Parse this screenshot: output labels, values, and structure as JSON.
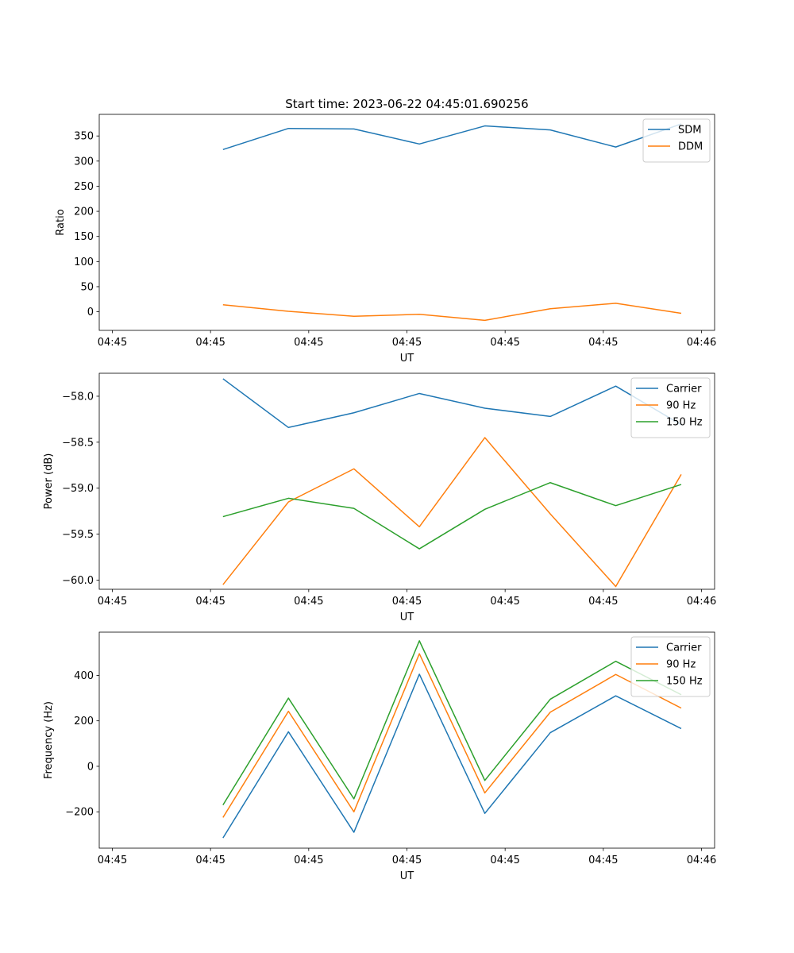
{
  "figure": {
    "title": "Start time: 2023-06-22 04:45:01.690256"
  },
  "chart_data": [
    {
      "type": "line",
      "title": "Start time: 2023-06-22 04:45:01.690256",
      "xlabel": "UT",
      "ylabel": "Ratio",
      "x": [
        1.69,
        2.69,
        3.69,
        4.69,
        5.69,
        6.69,
        7.69,
        8.69
      ],
      "x_ticks": [
        0,
        1.5,
        3,
        4.5,
        6,
        7.5,
        9
      ],
      "x_tick_labels": [
        "04:45",
        "04:45",
        "04:45",
        "04:45",
        "04:45",
        "04:45",
        "04:46"
      ],
      "xlim": [
        -0.2,
        9.2
      ],
      "ylim": [
        -37,
        393
      ],
      "y_ticks": [
        0,
        50,
        100,
        150,
        200,
        250,
        300,
        350
      ],
      "y_tick_labels": [
        "0",
        "50",
        "100",
        "150",
        "200",
        "250",
        "300",
        "350"
      ],
      "grid": false,
      "legend_position": "upper-right",
      "series": [
        {
          "name": "SDM",
          "color": "#1f77b4",
          "values": [
            323,
            365,
            364,
            334,
            370,
            362,
            328,
            374
          ]
        },
        {
          "name": "DDM",
          "color": "#ff7f0e",
          "values": [
            14,
            1,
            -9,
            -5,
            -17,
            6,
            17,
            -3
          ]
        }
      ]
    },
    {
      "type": "line",
      "xlabel": "UT",
      "ylabel": "Power (dB)",
      "x": [
        1.69,
        2.69,
        3.69,
        4.69,
        5.69,
        6.69,
        7.69,
        8.69
      ],
      "x_ticks": [
        0,
        1.5,
        3,
        4.5,
        6,
        7.5,
        9
      ],
      "x_tick_labels": [
        "04:45",
        "04:45",
        "04:45",
        "04:45",
        "04:45",
        "04:45",
        "04:46"
      ],
      "xlim": [
        -0.2,
        9.2
      ],
      "ylim": [
        -60.1,
        -57.75
      ],
      "y_ticks": [
        -60.0,
        -59.5,
        -59.0,
        -58.5,
        -58.0
      ],
      "y_tick_labels": [
        "−60.0",
        "−59.5",
        "−59.0",
        "−58.5",
        "−58.0"
      ],
      "grid": false,
      "legend_position": "upper-right",
      "series": [
        {
          "name": "Carrier",
          "color": "#1f77b4",
          "values": [
            -57.81,
            -58.34,
            -58.18,
            -57.97,
            -58.13,
            -58.22,
            -57.89,
            -58.31
          ]
        },
        {
          "name": "90 Hz",
          "color": "#ff7f0e",
          "values": [
            -60.05,
            -59.15,
            -58.79,
            -59.42,
            -58.45,
            -59.28,
            -60.07,
            -58.85
          ]
        },
        {
          "name": "150 Hz",
          "color": "#2ca02c",
          "values": [
            -59.31,
            -59.11,
            -59.22,
            -59.66,
            -59.23,
            -58.94,
            -59.19,
            -58.96
          ]
        }
      ]
    },
    {
      "type": "line",
      "xlabel": "UT",
      "ylabel": "Frequency (Hz)",
      "x": [
        1.69,
        2.69,
        3.69,
        4.69,
        5.69,
        6.69,
        7.69,
        8.69
      ],
      "x_ticks": [
        0,
        1.5,
        3,
        4.5,
        6,
        7.5,
        9
      ],
      "x_tick_labels": [
        "04:45",
        "04:45",
        "04:45",
        "04:45",
        "04:45",
        "04:45",
        "04:46"
      ],
      "xlim": [
        -0.2,
        9.2
      ],
      "ylim": [
        -360,
        590
      ],
      "y_ticks": [
        -200,
        0,
        200,
        400
      ],
      "y_tick_labels": [
        "−200",
        "0",
        "200",
        "400"
      ],
      "grid": false,
      "legend_position": "upper-right",
      "series": [
        {
          "name": "Carrier",
          "color": "#1f77b4",
          "values": [
            -315,
            152,
            -290,
            405,
            -207,
            148,
            310,
            166
          ]
        },
        {
          "name": "90 Hz",
          "color": "#ff7f0e",
          "values": [
            -225,
            242,
            -200,
            495,
            -117,
            238,
            404,
            256
          ]
        },
        {
          "name": "150 Hz",
          "color": "#2ca02c",
          "values": [
            -170,
            300,
            -143,
            552,
            -62,
            295,
            462,
            315
          ]
        }
      ]
    }
  ]
}
